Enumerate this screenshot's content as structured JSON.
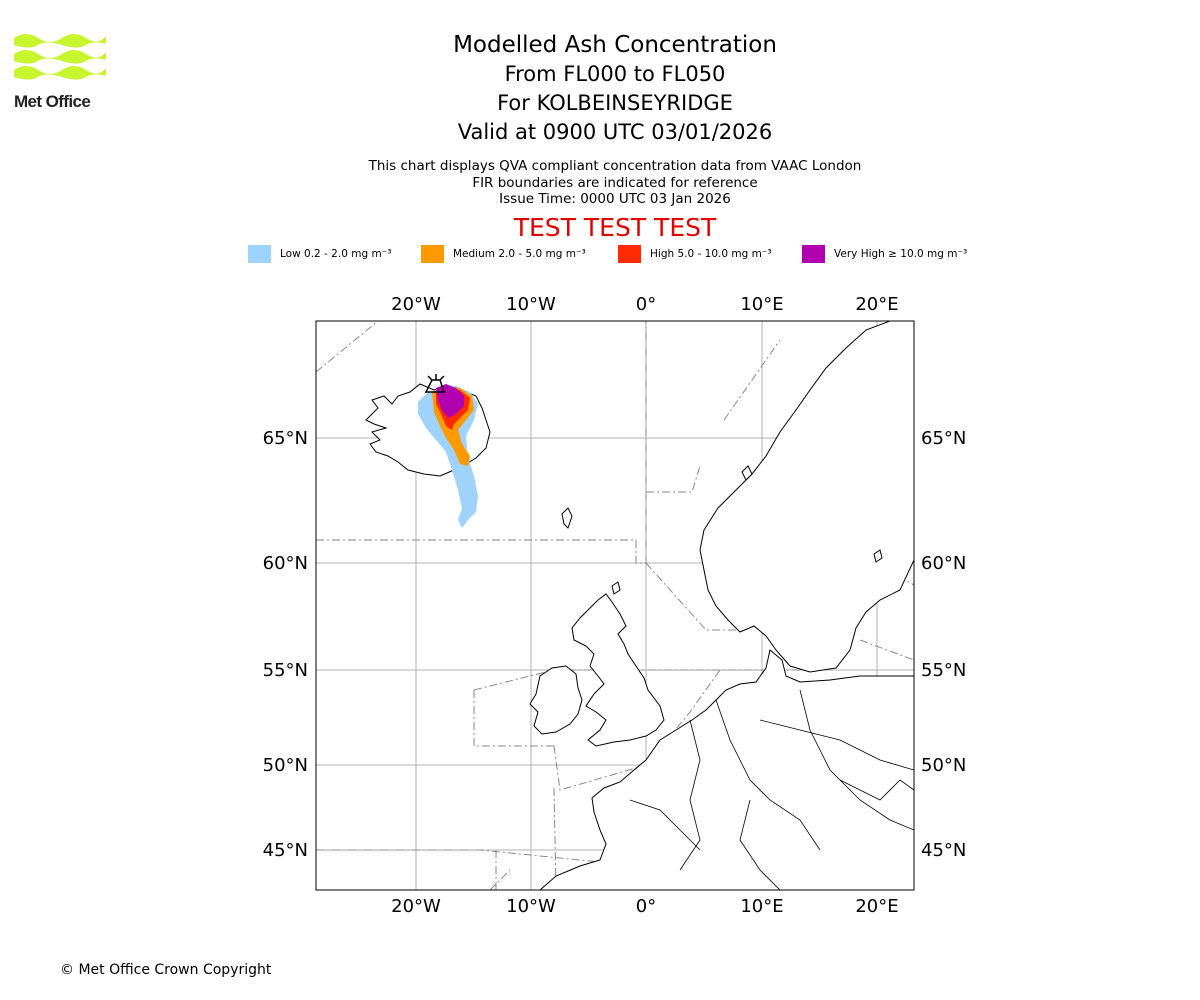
{
  "logo": {
    "text": "Met Office",
    "colors": {
      "waves": "#c8f52e"
    }
  },
  "header": {
    "title": "Modelled Ash Concentration",
    "levels": "From FL000 to FL050",
    "location": "For KOLBEINSEYRIDGE",
    "valid": "Valid at 0900 UTC 03/01/2026"
  },
  "subtitle": {
    "line1": "This chart displays QVA compliant concentration data from VAAC London",
    "line2": "FIR boundaries are indicated for reference",
    "line3": "Issue Time: 0000 UTC 03 Jan 2026"
  },
  "banner": {
    "text": "TEST TEST TEST",
    "color": "#e00000"
  },
  "legend": [
    {
      "label": "Low 0.2 - 2.0 mg m⁻³",
      "color": "#9fd3fb"
    },
    {
      "label": "Medium 2.0 - 5.0 mg m⁻³",
      "color": "#ff9900"
    },
    {
      "label": "High 5.0 - 10.0 mg m⁻³",
      "color": "#ff2a00"
    },
    {
      "label": "Very High ≥ 10.0 mg m⁻³",
      "color": "#b000b0"
    }
  ],
  "map": {
    "lon_labels": [
      "20°W",
      "10°W",
      "0°",
      "10°E",
      "20°E"
    ],
    "lat_labels": [
      "65°N",
      "60°N",
      "55°N",
      "50°N",
      "45°N"
    ],
    "volcano_marker": "volcano-symbol"
  },
  "footer": {
    "copyright": "© Met Office Crown Copyright"
  }
}
